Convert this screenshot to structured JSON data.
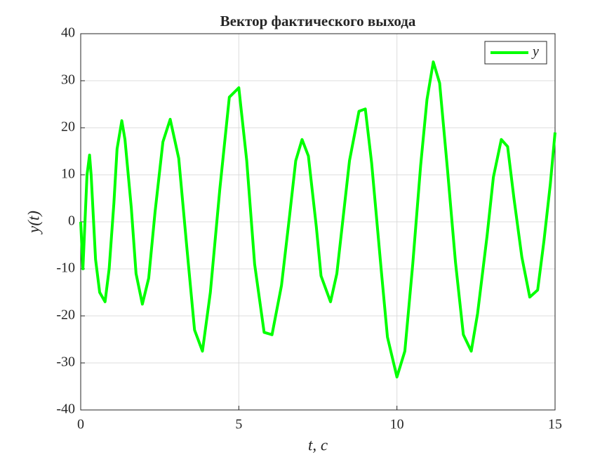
{
  "chart_data": {
    "type": "line",
    "title": "Вектор фактического выхода",
    "x_label": "t, c",
    "y_label": "y(t)",
    "x": [
      0,
      0.07,
      0.2,
      0.28,
      0.33,
      0.47,
      0.6,
      0.77,
      0.9,
      1.05,
      1.15,
      1.3,
      1.4,
      1.6,
      1.75,
      1.95,
      2.15,
      2.35,
      2.6,
      2.83,
      3.1,
      3.35,
      3.6,
      3.85,
      4.1,
      4.4,
      4.7,
      5,
      5.25,
      5.5,
      5.8,
      6.05,
      6.35,
      6.6,
      6.8,
      7,
      7.2,
      7.45,
      7.6,
      7.9,
      8.1,
      8.5,
      8.8,
      9,
      9.2,
      9.5,
      9.7,
      10,
      10.25,
      10.5,
      10.75,
      10.95,
      11.15,
      11.35,
      11.6,
      11.85,
      12.1,
      12.35,
      12.55,
      12.85,
      13.05,
      13.3,
      13.5,
      13.7,
      13.95,
      14.2,
      14.45,
      14.65,
      14.85,
      15
    ],
    "series": [
      {
        "name": "y",
        "color": "#00ff00",
        "values": [
          0,
          -10,
          10,
          14.2,
          10,
          -8,
          -15,
          -17,
          -10,
          4,
          15.5,
          21.5,
          17.5,
          3,
          -11,
          -17.5,
          -12,
          2,
          17,
          21.8,
          13.5,
          -5,
          -23,
          -27.5,
          -15,
          7,
          26.5,
          28.5,
          13,
          -9,
          -23.5,
          -24,
          -13.5,
          1,
          13,
          17.5,
          14,
          -1,
          -11.5,
          -17,
          -11,
          13,
          23.5,
          24,
          12.5,
          -10,
          -24.5,
          -33,
          -27.5,
          -9,
          12,
          26,
          34,
          29.5,
          11,
          -8.5,
          -24,
          -27.5,
          -19.5,
          -3,
          9.5,
          17.5,
          16,
          5,
          -7.5,
          -16,
          -14.5,
          -4,
          8,
          19
        ]
      }
    ],
    "xlim": [
      0,
      15
    ],
    "xticks": [
      0,
      5,
      10,
      15
    ],
    "ylim": [
      -40,
      40
    ],
    "yticks": [
      -40,
      -30,
      -20,
      -10,
      0,
      10,
      20,
      30,
      40
    ],
    "grid": true,
    "legend_position": "upper right"
  }
}
